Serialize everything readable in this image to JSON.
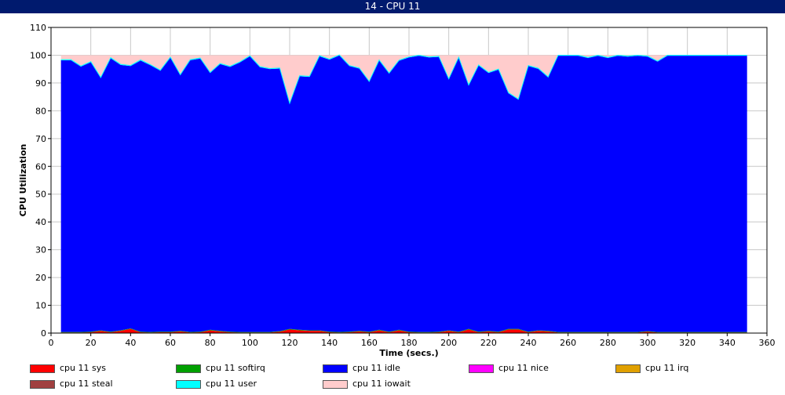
{
  "window": {
    "title": "14 - CPU 11"
  },
  "chart_data": {
    "type": "area",
    "title": "",
    "xlabel": "Time (secs.)",
    "ylabel": "CPU Utilization",
    "xlim": [
      0,
      360
    ],
    "ylim": [
      0,
      110
    ],
    "x_ticks": [
      0,
      20,
      40,
      60,
      80,
      100,
      120,
      140,
      160,
      180,
      200,
      220,
      240,
      260,
      280,
      300,
      320,
      340,
      360
    ],
    "y_ticks": [
      0,
      10,
      20,
      30,
      40,
      50,
      60,
      70,
      80,
      90,
      100,
      110
    ],
    "grid": true,
    "stacked": true,
    "legend_position": "bottom",
    "x": [
      5,
      10,
      15,
      20,
      25,
      30,
      35,
      40,
      45,
      50,
      55,
      60,
      65,
      70,
      75,
      80,
      85,
      90,
      95,
      100,
      105,
      110,
      115,
      120,
      125,
      130,
      135,
      140,
      145,
      150,
      155,
      160,
      165,
      170,
      175,
      180,
      185,
      190,
      195,
      200,
      205,
      210,
      215,
      220,
      225,
      230,
      235,
      240,
      245,
      250,
      255,
      260,
      265,
      270,
      275,
      280,
      285,
      290,
      295,
      300,
      305,
      310,
      315,
      320,
      325,
      330,
      335,
      340,
      345,
      350
    ],
    "series": [
      {
        "name": "cpu 11 sys",
        "color": "#ff0000",
        "values": [
          0.2,
          0.2,
          0.2,
          0.3,
          0.8,
          0.3,
          0.8,
          1.5,
          0.3,
          0.2,
          0.3,
          0.3,
          0.6,
          0.2,
          0.3,
          1.0,
          0.6,
          0.3,
          0.2,
          0.2,
          0.2,
          0.2,
          0.5,
          1.3,
          1.0,
          0.8,
          0.8,
          0.3,
          0.2,
          0.3,
          0.6,
          0.3,
          1.0,
          0.3,
          1.0,
          0.3,
          0.2,
          0.2,
          0.3,
          0.8,
          0.3,
          1.3,
          0.3,
          0.6,
          0.3,
          1.3,
          1.3,
          0.3,
          0.8,
          0.6,
          0.2,
          0.2,
          0.2,
          0.2,
          0.2,
          0.2,
          0.2,
          0.2,
          0.2,
          0.5,
          0.2,
          0.2,
          0.2,
          0.2,
          0.2,
          0.2,
          0.2,
          0.2,
          0.2,
          0.2
        ]
      },
      {
        "name": "cpu 11 softirq",
        "color": "#00a000",
        "values": [
          0.2,
          0.2,
          0.2,
          0.2,
          0.2,
          0.2,
          0.2,
          0.2,
          0.2,
          0.2,
          0.2,
          0.2,
          0.2,
          0.2,
          0.2,
          0.2,
          0.2,
          0.2,
          0.2,
          0.2,
          0.2,
          0.2,
          0.2,
          0.2,
          0.2,
          0.2,
          0.2,
          0.2,
          0.2,
          0.2,
          0.2,
          0.2,
          0.2,
          0.2,
          0.2,
          0.2,
          0.2,
          0.2,
          0.2,
          0.2,
          0.2,
          0.2,
          0.2,
          0.2,
          0.2,
          0.2,
          0.2,
          0.2,
          0.2,
          0.2,
          0.2,
          0.2,
          0.2,
          0.2,
          0.2,
          0.2,
          0.2,
          0.2,
          0.2,
          0.2,
          0.2,
          0.2,
          0.2,
          0.2,
          0.2,
          0.2,
          0.2,
          0.2,
          0.2,
          0.2
        ]
      },
      {
        "name": "cpu 11 idle",
        "color": "#0000ff",
        "values": [
          97.8,
          97.8,
          95.5,
          97.0,
          90.8,
          98.4,
          95.5,
          94.4,
          97.6,
          96.0,
          93.9,
          98.6,
          92.0,
          97.8,
          98.3,
          92.4,
          96.0,
          95.3,
          97.0,
          99.2,
          95.3,
          94.6,
          94.5,
          81.0,
          91.2,
          91.2,
          98.6,
          97.9,
          99.5,
          95.6,
          94.4,
          89.9,
          96.9,
          92.9,
          96.8,
          98.7,
          99.4,
          98.8,
          98.9,
          90.3,
          98.6,
          87.6,
          95.8,
          92.8,
          94.3,
          84.8,
          82.5,
          95.6,
          94.1,
          91.2,
          99.4,
          99.4,
          99.4,
          98.6,
          99.4,
          98.6,
          99.4,
          99.1,
          99.4,
          98.8,
          97.3,
          99.4,
          99.4,
          99.4,
          99.4,
          99.4,
          99.4,
          99.4,
          99.4,
          99.4
        ]
      },
      {
        "name": "cpu 11 nice",
        "color": "#ff00ff",
        "values": [
          0,
          0,
          0,
          0,
          0,
          0,
          0,
          0,
          0,
          0,
          0,
          0,
          0,
          0,
          0,
          0,
          0,
          0,
          0,
          0,
          0,
          0,
          0,
          0,
          0,
          0,
          0,
          0,
          0,
          0,
          0,
          0,
          0,
          0,
          0,
          0,
          0,
          0,
          0,
          0,
          0,
          0,
          0,
          0,
          0,
          0,
          0,
          0,
          0,
          0,
          0,
          0,
          0,
          0,
          0,
          0,
          0,
          0,
          0,
          0,
          0,
          0,
          0,
          0,
          0,
          0,
          0,
          0,
          0,
          0
        ]
      },
      {
        "name": "cpu 11 irq",
        "color": "#e0a000",
        "values": [
          0,
          0,
          0,
          0,
          0,
          0,
          0,
          0,
          0,
          0,
          0,
          0,
          0,
          0,
          0,
          0,
          0,
          0,
          0,
          0,
          0,
          0,
          0,
          0,
          0,
          0,
          0,
          0,
          0,
          0,
          0,
          0,
          0,
          0,
          0,
          0,
          0,
          0,
          0,
          0,
          0,
          0,
          0,
          0,
          0,
          0,
          0,
          0,
          0,
          0,
          0,
          0,
          0,
          0,
          0,
          0,
          0,
          0,
          0,
          0,
          0,
          0,
          0,
          0,
          0,
          0,
          0,
          0,
          0,
          0
        ]
      },
      {
        "name": "cpu 11 steal",
        "color": "#a04040",
        "values": [
          0,
          0,
          0,
          0,
          0,
          0,
          0,
          0,
          0,
          0,
          0,
          0,
          0,
          0,
          0,
          0,
          0,
          0,
          0,
          0,
          0,
          0,
          0,
          0,
          0,
          0,
          0,
          0,
          0,
          0,
          0,
          0,
          0,
          0,
          0,
          0,
          0,
          0,
          0,
          0,
          0,
          0,
          0,
          0,
          0,
          0,
          0,
          0,
          0,
          0,
          0,
          0,
          0,
          0,
          0,
          0,
          0,
          0,
          0,
          0,
          0,
          0,
          0,
          0,
          0,
          0,
          0,
          0,
          0,
          0
        ]
      },
      {
        "name": "cpu 11 user",
        "color": "#00ffff",
        "values": [
          0.2,
          0.2,
          0.2,
          0.2,
          0.2,
          0.2,
          0.2,
          0.2,
          0.2,
          0.2,
          0.2,
          0.2,
          0.2,
          0.2,
          0.2,
          0.2,
          0.2,
          0.2,
          0.2,
          0.2,
          0.2,
          0.2,
          0.2,
          0.2,
          0.2,
          0.2,
          0.2,
          0.2,
          0.2,
          0.2,
          0.2,
          0.2,
          0.2,
          0.2,
          0.2,
          0.2,
          0.2,
          0.2,
          0.2,
          0.2,
          0.2,
          0.2,
          0.2,
          0.2,
          0.2,
          0.2,
          0.2,
          0.2,
          0.2,
          0.2,
          0.2,
          0.2,
          0.2,
          0.2,
          0.2,
          0.2,
          0.2,
          0.2,
          0.2,
          0.2,
          0.2,
          0.2,
          0.2,
          0.2,
          0.2,
          0.2,
          0.2,
          0.2,
          0.2,
          0.2
        ]
      },
      {
        "name": "cpu 11 iowait",
        "color": "#ffcccc",
        "values": [
          1.6,
          1.6,
          3.9,
          2.3,
          8.0,
          0.9,
          3.3,
          3.7,
          1.7,
          3.4,
          5.4,
          0.7,
          7.0,
          1.6,
          1.0,
          6.2,
          3.0,
          4.0,
          2.4,
          0.2,
          4.1,
          4.8,
          4.6,
          17.3,
          7.4,
          7.6,
          0.2,
          1.4,
          0.1,
          3.7,
          4.6,
          9.4,
          1.7,
          6.4,
          1.8,
          0.6,
          0.0,
          0.6,
          0.4,
          8.5,
          0.7,
          10.7,
          3.5,
          6.2,
          5.0,
          13.5,
          15.8,
          3.7,
          4.7,
          7.8,
          0.0,
          0.0,
          0.0,
          0.8,
          0.0,
          0.8,
          0.0,
          0.3,
          0.0,
          0.3,
          2.1,
          0.0,
          0.0,
          0.0,
          0.0,
          0.0,
          0.0,
          0.0,
          0.0,
          0.0
        ]
      }
    ]
  }
}
